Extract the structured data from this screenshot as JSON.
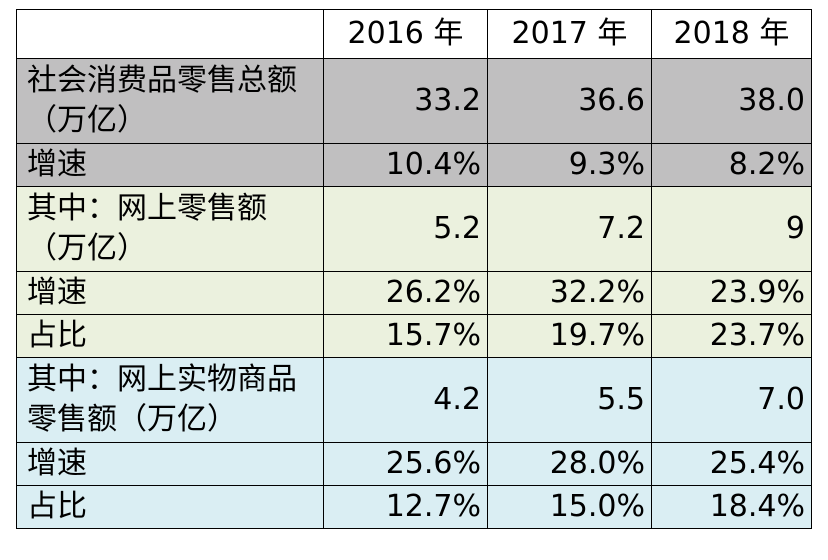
{
  "table": {
    "header": {
      "corner": "",
      "years": [
        "2016 年",
        "2017 年",
        "2018 年"
      ]
    },
    "rows": [
      {
        "label": "社会消费品零售总额（万亿）",
        "values": [
          "33.2",
          "36.6",
          "38.0"
        ],
        "group": "gray"
      },
      {
        "label": "增速",
        "values": [
          "10.4%",
          "9.3%",
          "8.2%"
        ],
        "group": "gray"
      },
      {
        "label": "其中：网上零售额（万亿）",
        "values": [
          "5.2",
          "7.2",
          "9"
        ],
        "group": "green"
      },
      {
        "label": "增速",
        "values": [
          "26.2%",
          "32.2%",
          "23.9%"
        ],
        "group": "green"
      },
      {
        "label": "占比",
        "values": [
          "15.7%",
          "19.7%",
          "23.7%"
        ],
        "group": "green"
      },
      {
        "label": "其中：网上实物商品零售额（万亿）",
        "values": [
          "4.2",
          "5.5",
          "7.0"
        ],
        "group": "blue"
      },
      {
        "label": "增速",
        "values": [
          "25.6%",
          "28.0%",
          "25.4%"
        ],
        "group": "blue"
      },
      {
        "label": "占比",
        "values": [
          "12.7%",
          "15.0%",
          "18.4%"
        ],
        "group": "blue"
      }
    ]
  },
  "colors": {
    "gray_group": "#c0bfc0",
    "green_group": "#ebf1de",
    "blue_group": "#daeef3",
    "border": "#000000"
  }
}
